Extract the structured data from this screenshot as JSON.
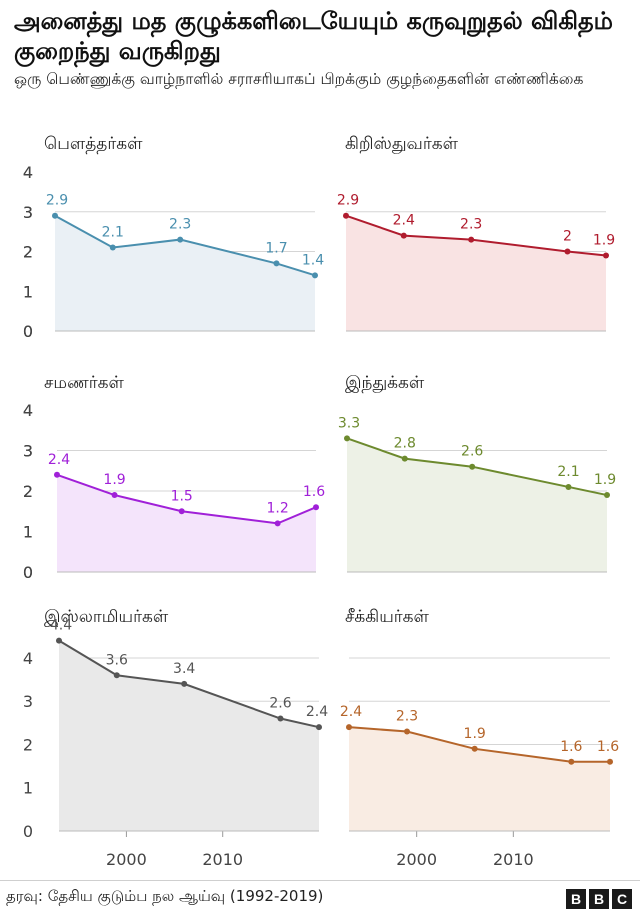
{
  "title": "அனைத்து மத குழுக்களிடையேயும் கருவுறுதல் விகிதம் குறைந்து வருகிறது",
  "subtitle": "ஒரு பெண்ணுக்கு வாழ்நாளில் சராசரியாகப் பிறக்கும் குழந்தைகளின் எண்ணிக்கை",
  "source": "தரவு: தேசிய குடும்ப நல ஆய்வு (1992-2019)",
  "logo": [
    "B",
    "B",
    "C"
  ],
  "chart_data": [
    {
      "type": "area",
      "title": "பௌத்தர்கள்",
      "x": [
        1993,
        1999,
        2006,
        2016,
        2020
      ],
      "y": [
        2.9,
        2.1,
        2.3,
        1.7,
        1.4
      ],
      "ylim": [
        0,
        4
      ],
      "yticks": [
        0,
        1,
        2,
        3,
        4
      ],
      "color": "#4a8fae",
      "fill": "#eaf0f5"
    },
    {
      "type": "area",
      "title": "கிறிஸ்துவர்கள்",
      "x": [
        1993,
        1999,
        2006,
        2016,
        2020
      ],
      "y": [
        2.9,
        2.4,
        2.3,
        2.0,
        1.9
      ],
      "ylim": [
        0,
        4
      ],
      "yticks": [
        0,
        1,
        2,
        3,
        4
      ],
      "color": "#b01c2e",
      "fill": "#f9e3e3"
    },
    {
      "type": "area",
      "title": "சமணர்கள்",
      "x": [
        1993,
        1999,
        2006,
        2016,
        2020
      ],
      "y": [
        2.4,
        1.9,
        1.5,
        1.2,
        1.6
      ],
      "ylim": [
        0,
        4
      ],
      "yticks": [
        0,
        1,
        2,
        3,
        4
      ],
      "color": "#a020d8",
      "fill": "#f4e4fb"
    },
    {
      "type": "area",
      "title": "இந்துக்கள்",
      "x": [
        1993,
        1999,
        2006,
        2016,
        2020
      ],
      "y": [
        3.3,
        2.8,
        2.6,
        2.1,
        1.9
      ],
      "ylim": [
        0,
        4
      ],
      "yticks": [
        0,
        1,
        2,
        3,
        4
      ],
      "color": "#6d8a2e",
      "fill": "#edf1e6"
    },
    {
      "type": "area",
      "title": "இஸ்லாமியர்கள்",
      "x": [
        1993,
        1999,
        2006,
        2016,
        2020
      ],
      "y": [
        4.4,
        3.6,
        3.4,
        2.6,
        2.4
      ],
      "ylim": [
        0,
        4.6
      ],
      "yticks": [
        0,
        1,
        2,
        3,
        4
      ],
      "xticks": [
        2000,
        2010
      ],
      "color": "#555555",
      "fill": "#e9e9e9"
    },
    {
      "type": "area",
      "title": "சீக்கியர்கள்",
      "x": [
        1993,
        1999,
        2006,
        2016,
        2020
      ],
      "y": [
        2.4,
        2.3,
        1.9,
        1.6,
        1.6
      ],
      "ylim": [
        0,
        4.6
      ],
      "yticks": [],
      "xticks": [
        2000,
        2010
      ],
      "color": "#b5652a",
      "fill": "#f9ece3"
    }
  ]
}
